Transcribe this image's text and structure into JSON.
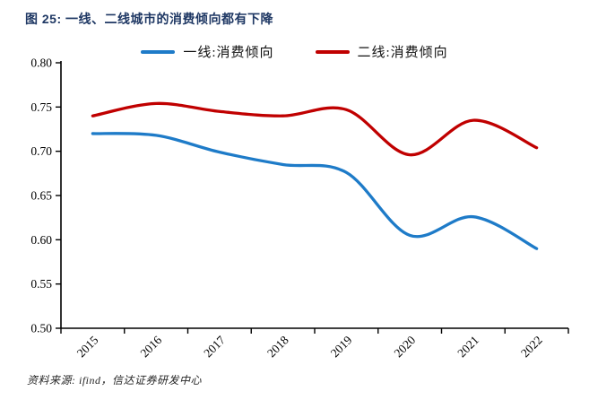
{
  "title": "图 25:  一线、二线城市的消费倾向都有下降",
  "source": "资料来源: ifind，信达证券研发中心",
  "colors": {
    "first_tier_line": "#1E7BC8",
    "second_tier_line": "#C00000",
    "title_text": "#1F3864",
    "axis": "#000000"
  },
  "legend": [
    {
      "label": "一线:消费倾向"
    },
    {
      "label": "二线:消费倾向"
    }
  ],
  "chart_data": {
    "type": "line",
    "smoothed": true,
    "grid": false,
    "legend_position": "top",
    "title": "图 25: 一线、二线城市的消费倾向都有下降",
    "xlabel": "",
    "ylabel": "",
    "categories": [
      "2015",
      "2016",
      "2017",
      "2018",
      "2019",
      "2020",
      "2021",
      "2022"
    ],
    "series": [
      {
        "name": "一线:消费倾向",
        "color": "#1E7BC8",
        "values": [
          0.72,
          0.718,
          0.699,
          0.685,
          0.676,
          0.605,
          0.626,
          0.59
        ]
      },
      {
        "name": "二线:消费倾向",
        "color": "#C00000",
        "values": [
          0.74,
          0.754,
          0.745,
          0.74,
          0.747,
          0.696,
          0.735,
          0.704
        ]
      }
    ],
    "ylim": [
      0.5,
      0.8
    ],
    "yticks": [
      "0.80",
      "0.75",
      "0.70",
      "0.65",
      "0.60",
      "0.55",
      "0.50"
    ]
  }
}
